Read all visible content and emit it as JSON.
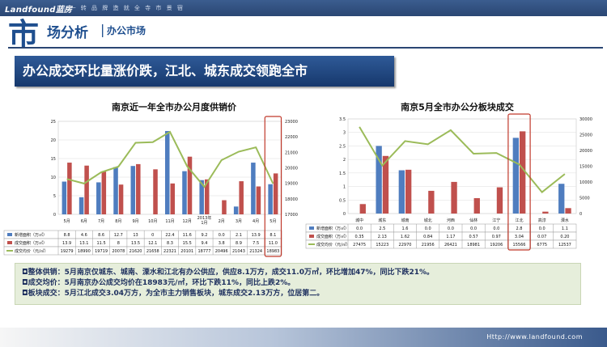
{
  "header": {
    "brand": "Landfound蓝房",
    "slogan": "| 一 转 品 牌 造 就 全 寺 市 景 宿",
    "big_char": "市",
    "title": "场分析",
    "sep": "|",
    "subtitle": "办公市场"
  },
  "banner": "办公成交环比量涨价跌，江北、城东成交领跑全市",
  "colors": {
    "supply": "#4f7dbf",
    "deal": "#c0504d",
    "price": "#9bbb59",
    "highlight": "#c0392b"
  },
  "chart_data": [
    {
      "type": "bar",
      "title": "南京近一年全市办公月度供销价",
      "categories": [
        "5月",
        "6月",
        "7月",
        "8月",
        "9月",
        "10月",
        "11月",
        "12月",
        "2013年1月",
        "2月",
        "3月",
        "4月",
        "5月"
      ],
      "series": [
        {
          "name": "新增面积（万㎡）",
          "values": [
            8.8,
            4.6,
            8.6,
            12.7,
            13.0,
            0,
            22.4,
            11.6,
            9.2,
            0.0,
            2.1,
            13.9,
            8.1
          ]
        },
        {
          "name": "成交面积（万㎡）",
          "values": [
            13.9,
            13.1,
            11.5,
            8.0,
            13.5,
            12.1,
            8.3,
            15.5,
            9.4,
            3.8,
            8.9,
            7.5,
            11.0
          ]
        },
        {
          "name": "成交均价（元/㎡）",
          "axis": "right",
          "values": [
            19279,
            18990,
            19719,
            20078,
            21620,
            21658,
            22321,
            20101,
            18777,
            20496,
            21043,
            21324,
            18983
          ]
        }
      ],
      "table_values": [
        [
          "8.8",
          "4.6",
          "8.6",
          "12.7",
          "13",
          "0",
          "22.4",
          "11.6",
          "9.2",
          "0.0",
          "2.1",
          "13.9",
          "8.1"
        ],
        [
          "13.9",
          "13.1",
          "11.5",
          "8",
          "13.5",
          "12.1",
          "8.3",
          "15.5",
          "9.4",
          "3.8",
          "8.9",
          "7.5",
          "11.0"
        ],
        [
          "19279",
          "18990",
          "19719",
          "20078",
          "21620",
          "21658",
          "22321",
          "20101",
          "18777",
          "20496",
          "21043",
          "21324",
          "18983"
        ]
      ],
      "ylim": [
        0,
        25
      ],
      "yticks": [
        "0",
        "5",
        "10",
        "15",
        "20",
        "25"
      ],
      "y2lim": [
        17000,
        23000
      ],
      "y2ticks": [
        "17000",
        "18000",
        "19000",
        "20000",
        "21000",
        "22000",
        "23000"
      ],
      "highlight_index": 12
    },
    {
      "type": "bar",
      "title": "南京5月全市办公分板块成交",
      "categories": [
        "城中",
        "城东",
        "城南",
        "城北",
        "河西",
        "仙林",
        "江宁",
        "江北",
        "高淳",
        "溧水"
      ],
      "series": [
        {
          "name": "新增面积（万㎡）",
          "values": [
            0.0,
            2.5,
            1.6,
            0.0,
            0.0,
            0.0,
            0.0,
            2.8,
            0.0,
            1.1
          ]
        },
        {
          "name": "成交面积（万㎡）",
          "values": [
            0.35,
            2.13,
            1.62,
            0.84,
            1.17,
            0.57,
            0.97,
            3.04,
            0.07,
            0.2
          ]
        },
        {
          "name": "成交均价（元/㎡）",
          "axis": "right",
          "values": [
            27475,
            15223,
            22970,
            21956,
            26421,
            18981,
            19206,
            15566,
            6775,
            12537
          ]
        }
      ],
      "table_values": [
        [
          "0.0",
          "2.5",
          "1.6",
          "0.0",
          "0.0",
          "0.0",
          "0.0",
          "2.8",
          "0.0",
          "1.1"
        ],
        [
          "0.35",
          "2.13",
          "1.62",
          "0.84",
          "1.17",
          "0.57",
          "0.97",
          "3.04",
          "0.07",
          "0.20"
        ],
        [
          "27475",
          "15223",
          "22970",
          "21956",
          "26421",
          "18981",
          "19206",
          "15566",
          "6775",
          "12537"
        ]
      ],
      "ylim": [
        0,
        3.5
      ],
      "yticks": [
        "0",
        "0.5",
        "1",
        "1.5",
        "2",
        "2.5",
        "3",
        "3.5"
      ],
      "y2lim": [
        0,
        30000
      ],
      "y2ticks": [
        "0",
        "5000",
        "10000",
        "15000",
        "20000",
        "25000",
        "30000"
      ],
      "highlight_index": 7
    }
  ],
  "notes": [
    "◘整体供销：5月南京仅城东、城南、溧水和江北有办公供应，供应8.1万方，成交11.0万㎡，环比增加47%，同比下跌21%。",
    "◘成交均价：5月南京办公成交均价在18983元/㎡，环比下跌11%，同比上跌2%。",
    "◘板块成交：5月江北成交3.04万方，为全市主力销售板块，城东成交2.13万方，位居第二。"
  ],
  "footer_url": "Http://www.landfound.com"
}
